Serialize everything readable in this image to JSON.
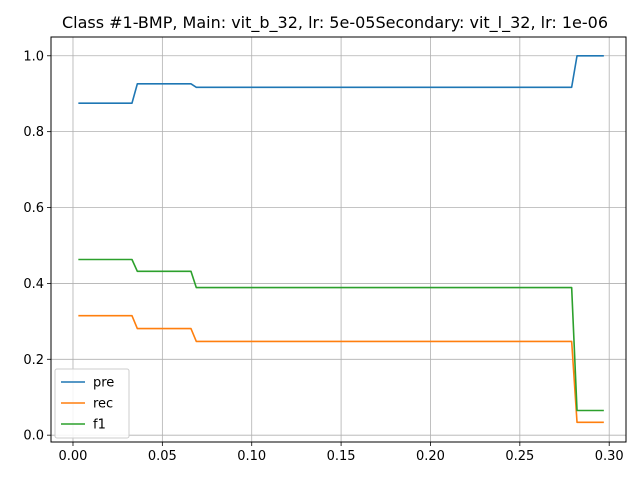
{
  "chart_data": {
    "type": "line",
    "title": "Class #1-BMP, Main: vit_b_32, lr: 5e-05Secondary: vit_l_32, lr: 1e-06",
    "xlabel": "",
    "ylabel": "",
    "xlim": [
      -0.0123,
      0.3094
    ],
    "ylim": [
      -0.018,
      1.0495
    ],
    "xticks": [
      0.0,
      0.05,
      0.1,
      0.15,
      0.2,
      0.25,
      0.3
    ],
    "xtick_labels": [
      "0.00",
      "0.05",
      "0.10",
      "0.15",
      "0.20",
      "0.25",
      "0.30"
    ],
    "yticks": [
      0.0,
      0.2,
      0.4,
      0.6,
      0.8,
      1.0
    ],
    "ytick_labels": [
      "0.0",
      "0.2",
      "0.4",
      "0.6",
      "0.8",
      "1.0"
    ],
    "grid": true,
    "legend_position": "lower left",
    "series": [
      {
        "name": "pre",
        "color": "#1f77b4",
        "x": [
          0.003,
          0.033,
          0.036,
          0.066,
          0.069,
          0.279,
          0.282,
          0.297
        ],
        "y": [
          0.875,
          0.875,
          0.926,
          0.926,
          0.917,
          0.917,
          1.0,
          1.0
        ]
      },
      {
        "name": "rec",
        "color": "#ff7f0e",
        "x": [
          0.003,
          0.033,
          0.036,
          0.066,
          0.069,
          0.279,
          0.282,
          0.297
        ],
        "y": [
          0.315,
          0.315,
          0.281,
          0.281,
          0.247,
          0.247,
          0.034,
          0.034
        ]
      },
      {
        "name": "f1",
        "color": "#2ca02c",
        "x": [
          0.003,
          0.033,
          0.036,
          0.066,
          0.069,
          0.279,
          0.282,
          0.297
        ],
        "y": [
          0.463,
          0.463,
          0.432,
          0.432,
          0.389,
          0.389,
          0.065,
          0.065
        ]
      }
    ]
  }
}
